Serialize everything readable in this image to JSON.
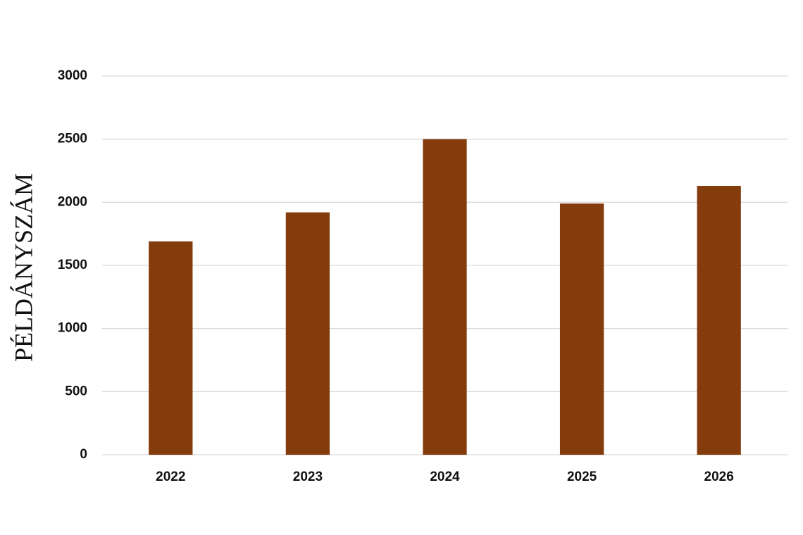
{
  "chart_data": {
    "type": "bar",
    "y_label": "PÉLDÁNYSZÁM",
    "categories": [
      "2022",
      "2023",
      "2024",
      "2025",
      "2026"
    ],
    "values": [
      1690,
      1920,
      2500,
      1990,
      2130
    ],
    "color": "#843c0c",
    "ylim": [
      0,
      3000
    ],
    "yticks": [
      0,
      500,
      1000,
      1500,
      2000,
      2500,
      3000
    ],
    "grid": true
  }
}
